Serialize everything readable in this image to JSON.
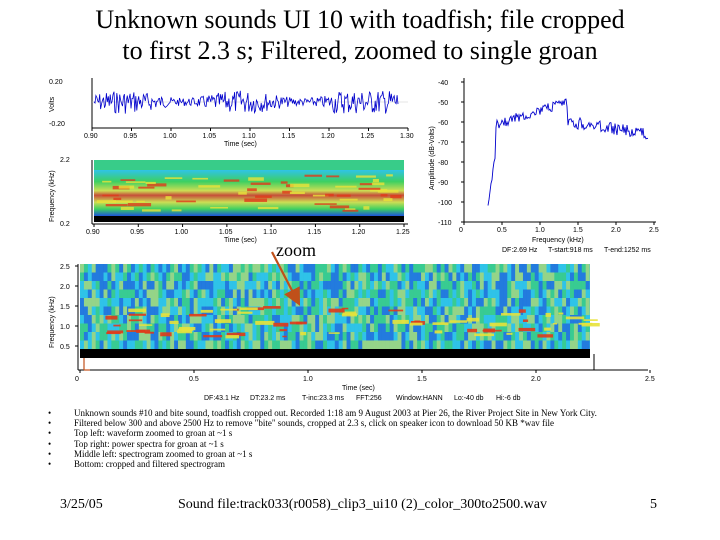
{
  "slide": {
    "title_line1": "Unknown sounds UI 10 with toadfish; file cropped",
    "title_line2": "to first 2.3 s; Filtered, zoomed to single groan",
    "zoom_label": "zoom",
    "bullets": [
      "Unknown sounds #10 and bite sound, toadfish cropped out. Recorded 1:18 am 9 August 2003 at Pier 26, the River Project Site in New York City.",
      "Filtered below 300 and above 2500 Hz to remove \"bite\" sounds, cropped at 2.3 s, click on speaker icon to download 50 KB *wav file",
      "Top left: waveform zoomed to groan at ~1 s",
      "Top right: power spectra for groan at ~1 s",
      "Middle left: spectrogram zoomed to groan at ~1 s",
      "Bottom: cropped and filtered spectrogram"
    ],
    "bullet_marker": "•",
    "footer_date": "3/25/05",
    "footer_file": "Sound file:track033(r0058)_clip3_ui10 (2)_color_300to2500.wav",
    "footer_page": "5"
  },
  "waveform": {
    "ylabel": "Volts",
    "xlabel": "Time (sec)",
    "yticks": [
      "0.20",
      "-0.20"
    ],
    "xticks": [
      "0.90",
      "0.95",
      "1.00",
      "1.05",
      "1.10",
      "1.15",
      "1.20",
      "1.25",
      "1.30"
    ],
    "color": "#0000cc"
  },
  "zoom_spectrogram": {
    "ylabel": "Frequency (kHz)",
    "xlabel": "Time (sec)",
    "yticks": [
      "2.2",
      "0.2"
    ],
    "xticks": [
      "0.90",
      "0.95",
      "1.00",
      "1.05",
      "1.10",
      "1.15",
      "1.20",
      "1.25"
    ]
  },
  "power_spectrum": {
    "ylabel": "Amplitude (dB-Volts)",
    "xlabel": "Frequency (kHz)",
    "yticks": [
      "-40",
      "-50",
      "-60",
      "-70",
      "-80",
      "-90",
      "-100",
      "-110"
    ],
    "xticks": [
      "0",
      "0.5",
      "1.0",
      "1.5",
      "2.0",
      "2.5"
    ],
    "info_df": "DF:2.69 Hz",
    "info_tstart": "T-start:918 ms",
    "info_tend": "T-end:1252 ms",
    "color": "#0000cc"
  },
  "main_spectrogram": {
    "ylabel": "Frequency (kHz)",
    "xlabel": "Time (sec)",
    "yticks": [
      "2.5",
      "2.0",
      "1.5",
      "1.0",
      "0.5"
    ],
    "xticks": [
      "0",
      "0.5",
      "1.0",
      "1.5",
      "2.0",
      "2.5"
    ],
    "footer_params": [
      "DF:43.1 Hz",
      "DT:23.2 ms",
      "T-inc:23.3 ms",
      "FFT:256",
      "Window:HANN",
      "Lo:-40 db",
      "Hi:-6 db"
    ]
  },
  "colors": {
    "spectro_blue": "#1a3fd6",
    "spectro_cyan": "#2fc3e8",
    "spectro_green": "#3fd24a",
    "spectro_yellow": "#e8e23a",
    "spectro_red": "#e03a1a",
    "arrow": "#c0501a"
  }
}
